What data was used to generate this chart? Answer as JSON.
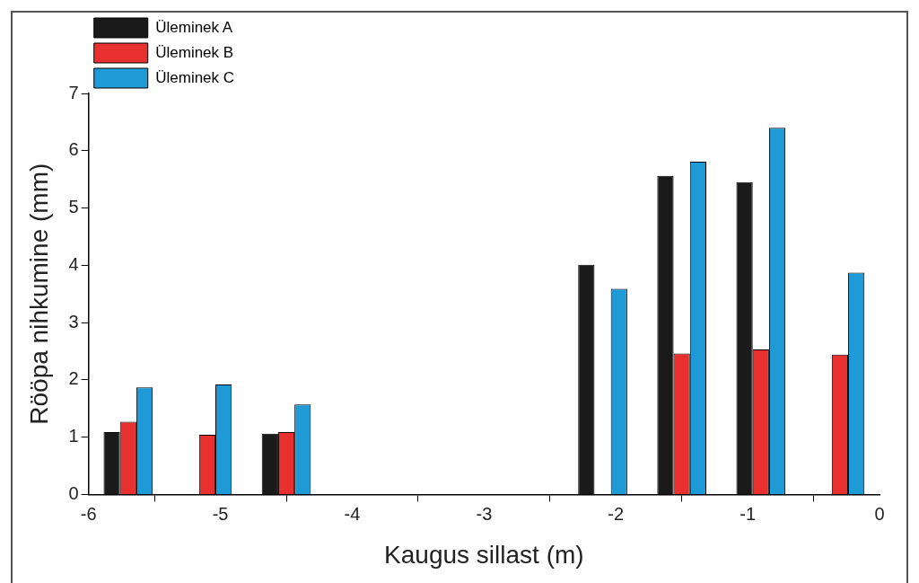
{
  "chart_data": {
    "type": "bar",
    "xlabel": "Kaugus sillast (m)",
    "ylabel": "Rööpa nihkumine (mm)",
    "x": [
      -5.7,
      -5.1,
      -4.5,
      -2.1,
      -1.5,
      -0.9,
      -0.3
    ],
    "series": [
      {
        "name": "Üleminek A",
        "color": "#1a1a1a",
        "values": [
          1.09,
          null,
          1.06,
          4.01,
          5.56,
          5.45,
          null
        ]
      },
      {
        "name": "Üleminek B",
        "color": "#e8312f",
        "values": [
          1.27,
          1.04,
          1.09,
          null,
          2.46,
          2.53,
          2.44
        ]
      },
      {
        "name": "Üleminek C",
        "color": "#1e9ad6",
        "values": [
          1.87,
          1.92,
          1.57,
          3.59,
          5.81,
          6.4,
          3.87
        ]
      }
    ],
    "xlim": [
      -6,
      0
    ],
    "xticks": [
      -6,
      -5,
      -4,
      -3,
      -2,
      -1,
      0
    ],
    "ylim": [
      0,
      7
    ],
    "yticks": [
      0,
      1,
      2,
      3,
      4,
      5,
      6,
      7
    ],
    "grid": false,
    "legend": "top left"
  }
}
